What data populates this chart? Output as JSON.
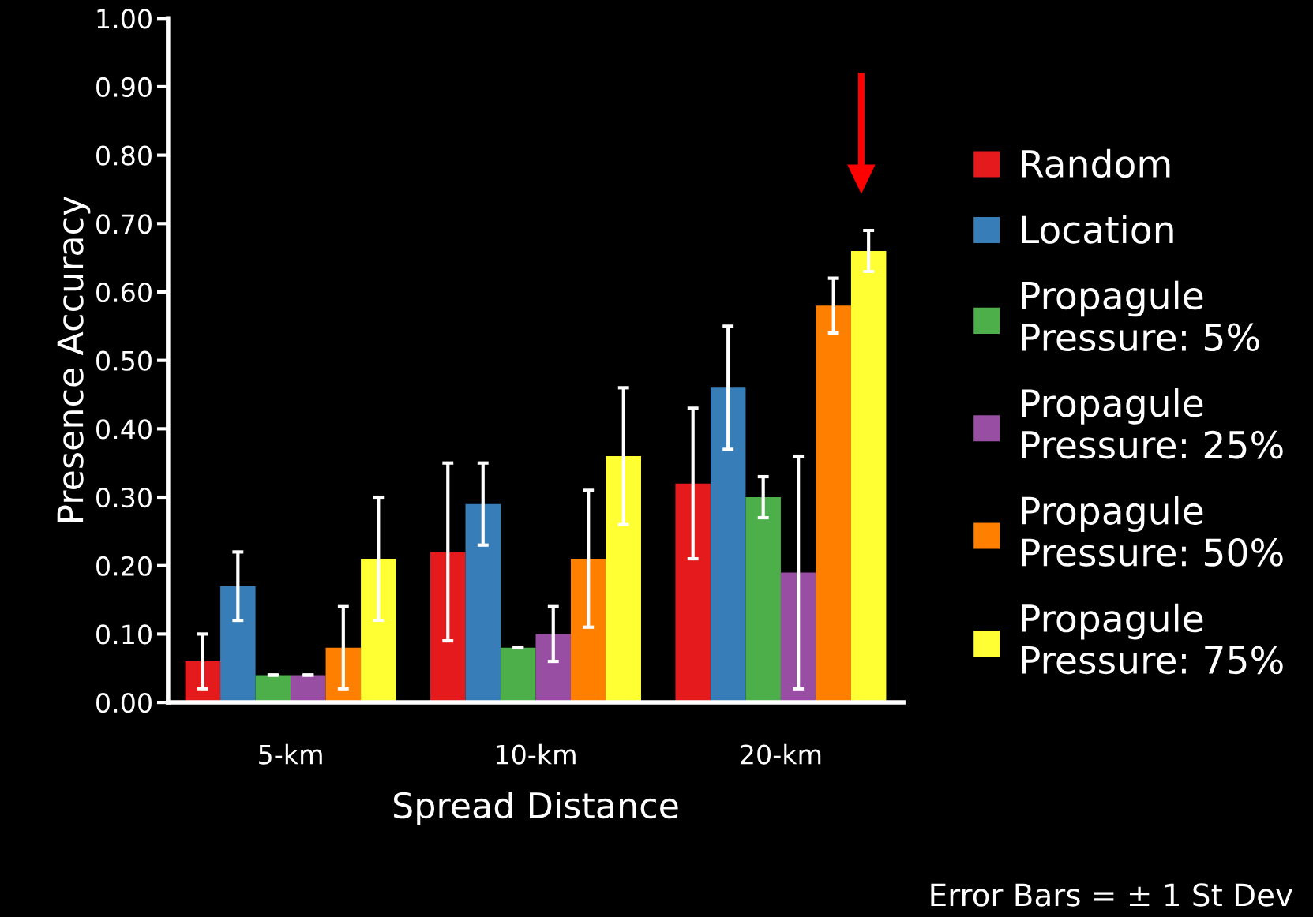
{
  "chart_data": {
    "type": "bar",
    "xlabel": "Spread Distance",
    "ylabel": "Presence Accuracy",
    "categories": [
      "5-km",
      "10-km",
      "20-km"
    ],
    "series": [
      {
        "name": "Random",
        "color": "#e41a1c",
        "values": [
          0.06,
          0.22,
          0.32
        ],
        "errors": [
          0.04,
          0.13,
          0.11
        ]
      },
      {
        "name": "Location",
        "color": "#377eb8",
        "values": [
          0.17,
          0.29,
          0.46
        ],
        "errors": [
          0.05,
          0.06,
          0.09
        ]
      },
      {
        "name": "Propagule\nPressure: 5%",
        "color": "#4daf4a",
        "values": [
          0.04,
          0.08,
          0.3
        ],
        "errors": [
          0,
          0,
          0.03
        ]
      },
      {
        "name": "Propagule\nPressure: 25%",
        "color": "#984ea3",
        "values": [
          0.04,
          0.1,
          0.19
        ],
        "errors": [
          0,
          0.04,
          0.17
        ]
      },
      {
        "name": "Propagule\nPressure: 50%",
        "color": "#ff7f00",
        "values": [
          0.08,
          0.21,
          0.58
        ],
        "errors": [
          0.06,
          0.1,
          0.04
        ]
      },
      {
        "name": "Propagule\nPressure: 75%",
        "color": "#ffff33",
        "values": [
          0.21,
          0.36,
          0.66
        ],
        "errors": [
          0.09,
          0.1,
          0.03
        ]
      }
    ],
    "ylim": [
      0,
      1
    ],
    "yticks": [
      {
        "value": 0,
        "label": "0.00"
      },
      {
        "value": 0.1,
        "label": "0.10"
      },
      {
        "value": 0.2,
        "label": "0.20"
      },
      {
        "value": 0.3,
        "label": "0.30"
      },
      {
        "value": 0.4,
        "label": "0.40"
      },
      {
        "value": 0.5,
        "label": "0.50"
      },
      {
        "value": 0.6,
        "label": "0.60"
      },
      {
        "value": 0.7,
        "label": "0.70"
      },
      {
        "value": 0.8,
        "label": "0.80"
      },
      {
        "value": 0.9,
        "label": "0.90"
      },
      {
        "value": 1,
        "label": "1.00"
      }
    ],
    "grid": false,
    "legend": "right",
    "annotations": [
      "Error Bars = ± 1 St Dev"
    ]
  }
}
